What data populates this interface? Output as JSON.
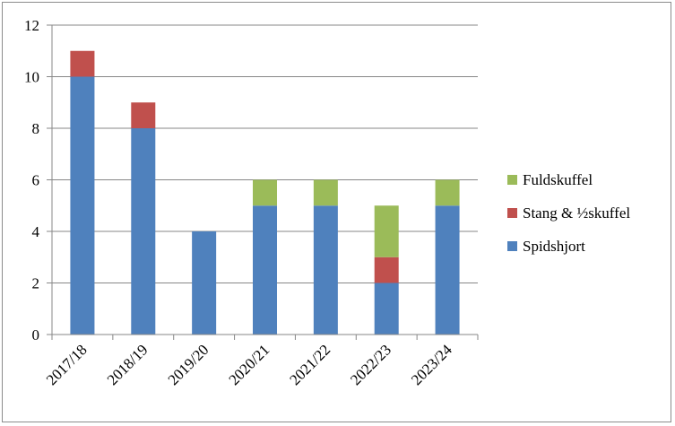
{
  "chart_data": {
    "type": "bar",
    "stacked": true,
    "categories": [
      "2017/18",
      "2018/19",
      "2019/20",
      "2020/21",
      "2021/22",
      "2022/23",
      "2023/24"
    ],
    "series": [
      {
        "name": "Spidshjort",
        "color": "#4f81bd",
        "values": [
          10,
          8,
          4,
          5,
          5,
          2,
          5
        ]
      },
      {
        "name": "Stang & ½skuffel",
        "color": "#c0504d",
        "values": [
          1,
          1,
          0,
          0,
          0,
          1,
          0
        ]
      },
      {
        "name": "Fuldskuffel",
        "color": "#9bbb59",
        "values": [
          0,
          0,
          0,
          1,
          1,
          2,
          1
        ]
      }
    ],
    "y_ticks": [
      "0",
      "2",
      "4",
      "6",
      "8",
      "10",
      "12"
    ],
    "ylim": [
      0,
      12
    ],
    "grid": true,
    "legend_position": "right",
    "legend_order": [
      "Fuldskuffel",
      "Stang & ½skuffel",
      "Spidshjort"
    ]
  }
}
